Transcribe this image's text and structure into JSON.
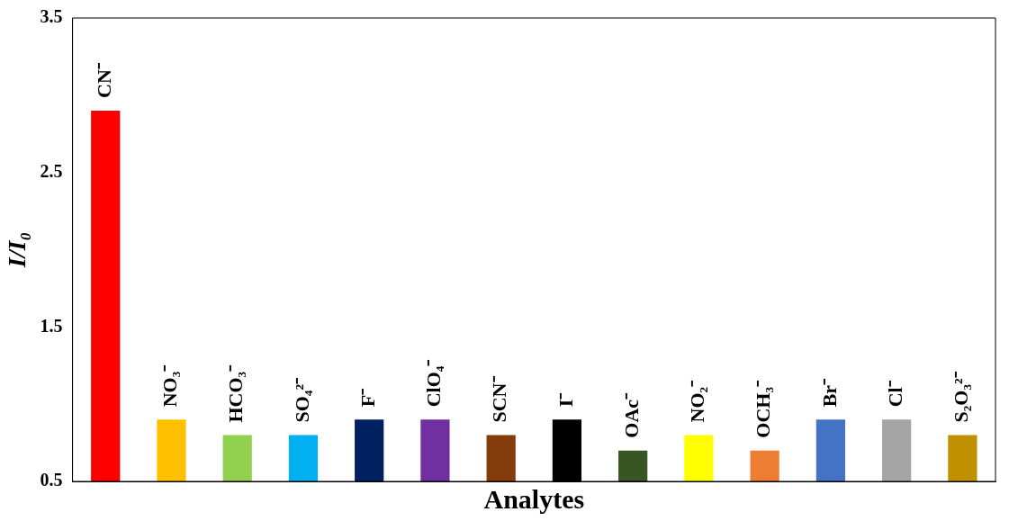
{
  "chart_data": {
    "type": "bar",
    "xlabel": "Analytes",
    "ylabel": "I/I₀",
    "categories": [
      "CN⁻",
      "NO₃⁻",
      "HCO₃⁻",
      "SO₄²⁻",
      "F⁻",
      "ClO₄⁻",
      "SCN⁻",
      "I⁻",
      "OAc⁻",
      "NO₂⁻",
      "OCH₃⁻",
      "Br⁻",
      "Cl⁻",
      "S₂O₃²⁻"
    ],
    "values": [
      2.9,
      0.9,
      0.8,
      0.8,
      0.9,
      0.9,
      0.8,
      0.9,
      0.7,
      0.8,
      0.7,
      0.9,
      0.9,
      0.8
    ],
    "colors": [
      "#ff0000",
      "#ffc000",
      "#92d050",
      "#00b0f0",
      "#002060",
      "#7030a0",
      "#843c0c",
      "#000000",
      "#375623",
      "#ffff00",
      "#ed7d31",
      "#4472c4",
      "#a5a5a5",
      "#bf9000"
    ],
    "ylim": [
      0.5,
      3.5
    ],
    "yticks": [
      0.5,
      1.5,
      2.5,
      3.5
    ],
    "grid": false,
    "legend": false
  }
}
